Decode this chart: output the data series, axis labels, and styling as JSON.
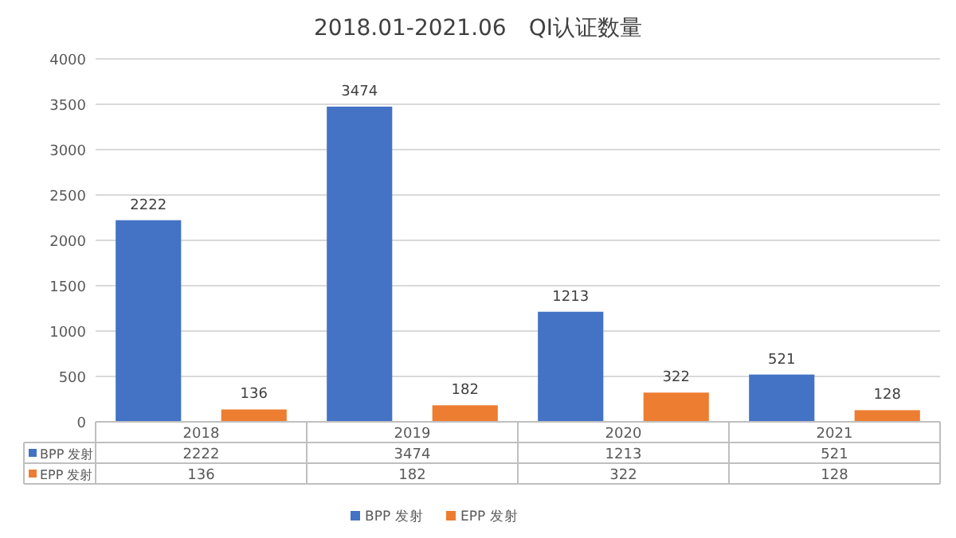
{
  "chart_data": {
    "type": "bar",
    "title": "2018.01-2021.06　QI认证数量",
    "categories": [
      "2018",
      "2019",
      "2020",
      "2021"
    ],
    "series": [
      {
        "name": "BPP 发射",
        "color": "#4472c4",
        "values": [
          2222,
          3474,
          1213,
          521
        ]
      },
      {
        "name": "EPP 发射",
        "color": "#ed7d31",
        "values": [
          136,
          182,
          322,
          128
        ]
      }
    ],
    "ylim": [
      0,
      4000
    ],
    "yticks": [
      0,
      500,
      1000,
      1500,
      2000,
      2500,
      3000,
      3500,
      4000
    ],
    "annotations": [
      "2222",
      "3474",
      "1213",
      "521",
      "136",
      "182",
      "322",
      "128"
    ],
    "grid": "y",
    "legend": "bottom",
    "data_labels": true
  }
}
